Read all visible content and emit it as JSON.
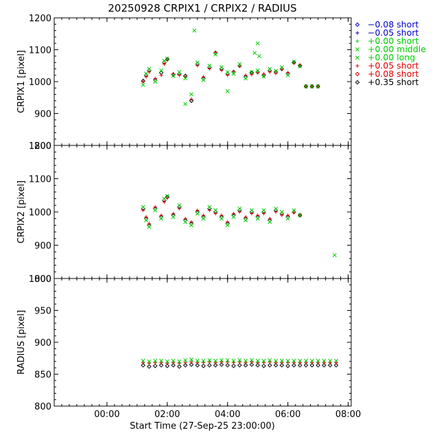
{
  "chart_data": {
    "type": "scatter",
    "title": "20250928  CRPIX1  /  CRPIX2  /  RADIUS",
    "xlabel": "Start Time (27-Sep-25 23:00:00)",
    "x_unit": "hours after 27-Sep-25 23:00:00",
    "xlim": [
      -0.75,
      9.1
    ],
    "x_ticks": [
      {
        "value": 1,
        "label": "00:00"
      },
      {
        "value": 3,
        "label": "02:00"
      },
      {
        "value": 5,
        "label": "04:00"
      },
      {
        "value": 7,
        "label": "06:00"
      },
      {
        "value": 9,
        "label": "08:00"
      }
    ],
    "legend": {
      "placement": "outside-right-top",
      "entries": [
        {
          "symbol": "diamond",
          "color": "#0000cc",
          "label": "−0.08 short"
        },
        {
          "symbol": "plus",
          "color": "#0000cc",
          "label": "−0.05 short"
        },
        {
          "symbol": "plus",
          "color": "#00cc00",
          "label": "+0.00 short"
        },
        {
          "symbol": "cross",
          "color": "#00cc00",
          "label": "+0.00 middle"
        },
        {
          "symbol": "cross",
          "color": "#00cc00",
          "label": "+0.00 long"
        },
        {
          "symbol": "plus",
          "color": "#dd0000",
          "label": "+0.05 short"
        },
        {
          "symbol": "diamond",
          "color": "#dd0000",
          "label": "+0.08 short"
        },
        {
          "symbol": "diamond",
          "color": "#000000",
          "label": "+0.35 short"
        }
      ]
    },
    "panels": [
      {
        "ylabel": "CRPIX1 [pixel]",
        "ylim": [
          800,
          1200
        ],
        "y_ticks": [
          800,
          900,
          1000,
          1100,
          1200
        ],
        "x": [
          2.2,
          2.3,
          2.4,
          2.6,
          2.8,
          2.9,
          3.0,
          3.2,
          3.4,
          3.6,
          3.8,
          4.0,
          4.2,
          4.4,
          4.6,
          4.8,
          5.0,
          5.2,
          5.4,
          5.6,
          5.8,
          6.0,
          6.2,
          6.4,
          6.6,
          6.8,
          7.0,
          7.2,
          7.4,
          7.6,
          7.8,
          8.0
        ],
        "series": [
          {
            "values": [
              1002,
              1020,
              1035,
              1005,
              1028,
              1060,
              1070,
              1022,
              1024,
              1018,
              940,
              1055,
              1010,
              1045,
              1090,
              1040,
              1025,
              1030,
              1050,
              1015,
              1028,
              1030,
              1020,
              1035,
              1030,
              1040,
              1025,
              1060,
              1050,
              985,
              985,
              985
            ]
          },
          {
            "values": [
              1000,
              1015,
              1030,
              1010,
              1020,
              1055,
              1068,
              1025,
              1020,
              1015,
              945,
              1050,
              1015,
              1040,
              1092,
              1035,
              1020,
              1032,
              1048,
              1020,
              1022,
              1028,
              1024,
              1030,
              1026,
              1038,
              1028,
              1058,
              1052,
              985,
              985,
              985
            ]
          },
          {
            "values": [
              990,
              1025,
              1040,
              1000,
              1035,
              1065,
              1072,
              1018,
              1030,
              1010,
              960,
              1060,
              1005,
              1050,
              1085,
              1045,
              1030,
              1025,
              1055,
              1010,
              1030,
              1035,
              1016,
              1040,
              1034,
              1045,
              1020,
              1062,
              1048,
              985,
              985,
              985
            ]
          }
        ],
        "outliers": [
          {
            "x": 3.6,
            "y": 930
          },
          {
            "x": 3.9,
            "y": 1160
          },
          {
            "x": 5.0,
            "y": 970
          },
          {
            "x": 5.9,
            "y": 1090
          },
          {
            "x": 6.0,
            "y": 1120
          },
          {
            "x": 6.05,
            "y": 1080
          }
        ]
      },
      {
        "ylabel": "CRPIX2 [pixel]",
        "ylim": [
          800,
          1200
        ],
        "y_ticks": [
          800,
          900,
          1000,
          1100,
          1200
        ],
        "x": [
          2.2,
          2.3,
          2.4,
          2.6,
          2.8,
          2.9,
          3.0,
          3.2,
          3.4,
          3.6,
          3.8,
          4.0,
          4.2,
          4.4,
          4.6,
          4.8,
          5.0,
          5.2,
          5.4,
          5.6,
          5.8,
          6.0,
          6.2,
          6.4,
          6.6,
          6.8,
          7.0,
          7.2,
          7.4
        ],
        "series": [
          {
            "values": [
              1010,
              980,
              960,
              1010,
              985,
              1035,
              1045,
              990,
              1015,
              975,
              965,
              1000,
              985,
              1010,
              1000,
              985,
              965,
              990,
              1005,
              980,
              1000,
              985,
              1000,
              975,
              1005,
              995,
              985,
              1000,
              990
            ]
          },
          {
            "values": [
              1005,
              985,
              965,
              1015,
              990,
              1030,
              1042,
              995,
              1010,
              980,
              970,
              1005,
              990,
              1005,
              995,
              990,
              970,
              995,
              1000,
              985,
              995,
              990,
              995,
              980,
              1000,
              990,
              990,
              998,
              990
            ]
          },
          {
            "values": [
              1015,
              975,
              955,
              1005,
              980,
              1040,
              1048,
              985,
              1020,
              970,
              960,
              995,
              980,
              1015,
              1005,
              980,
              960,
              985,
              1010,
              975,
              1005,
              980,
              1005,
              970,
              1010,
              1000,
              980,
              1005,
              990
            ]
          }
        ],
        "outliers": [
          {
            "x": 8.55,
            "y": 870
          }
        ]
      },
      {
        "ylabel": "RADIUS [pixel]",
        "ylim": [
          800,
          1000
        ],
        "y_ticks": [
          800,
          850,
          900,
          950,
          1000
        ],
        "x": [
          2.2,
          2.4,
          2.6,
          2.8,
          3.0,
          3.2,
          3.4,
          3.6,
          3.8,
          4.0,
          4.2,
          4.4,
          4.6,
          4.8,
          5.0,
          5.2,
          5.4,
          5.6,
          5.8,
          6.0,
          6.2,
          6.4,
          6.6,
          6.8,
          7.0,
          7.2,
          7.4,
          7.6,
          7.8,
          8.0,
          8.2,
          8.4,
          8.6
        ],
        "series": [
          {
            "values": [
              864,
              862,
              863,
              864,
              863,
              864,
              862,
              864,
              865,
              864,
              863,
              864,
              864,
              865,
              864,
              863,
              864,
              864,
              865,
              864,
              863,
              864,
              864,
              864,
              863,
              864,
              864,
              864,
              864,
              864,
              864,
              864,
              864
            ]
          },
          {
            "values": [
              868,
              867,
              868,
              868,
              867,
              868,
              867,
              868,
              869,
              868,
              868,
              869,
              868,
              869,
              869,
              868,
              869,
              868,
              869,
              868,
              868,
              869,
              868,
              868,
              868,
              868,
              868,
              868,
              868,
              868,
              868,
              868,
              868
            ]
          },
          {
            "values": [
              871,
              870,
              871,
              871,
              870,
              871,
              870,
              872,
              873,
              871,
              871,
              872,
              871,
              872,
              872,
              871,
              872,
              871,
              872,
              871,
              871,
              872,
              871,
              871,
              871,
              871,
              871,
              871,
              871,
              871,
              871,
              871,
              871
            ]
          }
        ]
      }
    ]
  }
}
